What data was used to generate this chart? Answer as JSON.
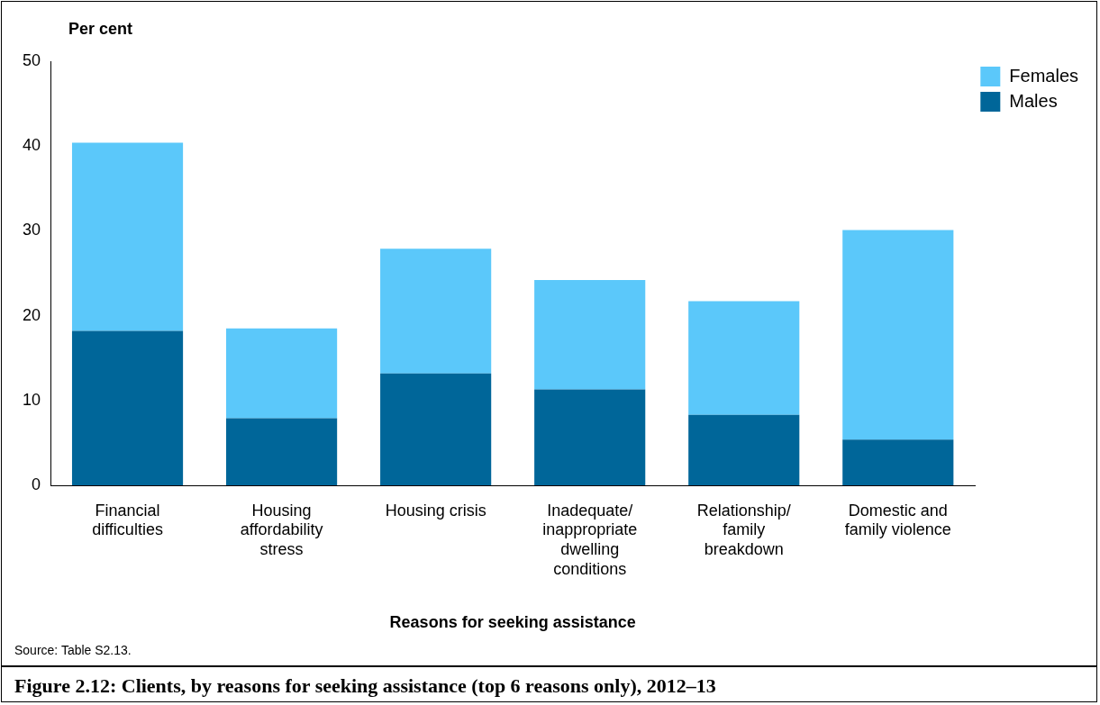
{
  "chart_data": {
    "type": "bar",
    "stacked": true,
    "title": "Figure 2.12: Clients, by reasons for seeking assistance (top 6 reasons only), 2012–13",
    "xlabel": "Reasons for seeking assistance",
    "ylabel": "Per cent",
    "categories": [
      "Financial difficulties",
      "Housing affordability stress",
      "Housing crisis",
      "Inadequate/inappropriate dwelling conditions",
      "Relationship/family breakdown",
      "Domestic and family violence"
    ],
    "series": [
      {
        "name": "Males",
        "color": "#006699",
        "values": [
          18.2,
          7.9,
          13.2,
          11.3,
          8.3,
          5.4
        ]
      },
      {
        "name": "Females",
        "color": "#5bc8fa",
        "values": [
          22.2,
          10.6,
          14.7,
          12.9,
          13.4,
          24.7
        ]
      }
    ],
    "ylim": [
      0,
      50
    ],
    "yticks": [
      0,
      10,
      20,
      30,
      40,
      50
    ],
    "grid": false,
    "legend": "top right",
    "annotations": [
      "Source: Table S2.13."
    ]
  }
}
